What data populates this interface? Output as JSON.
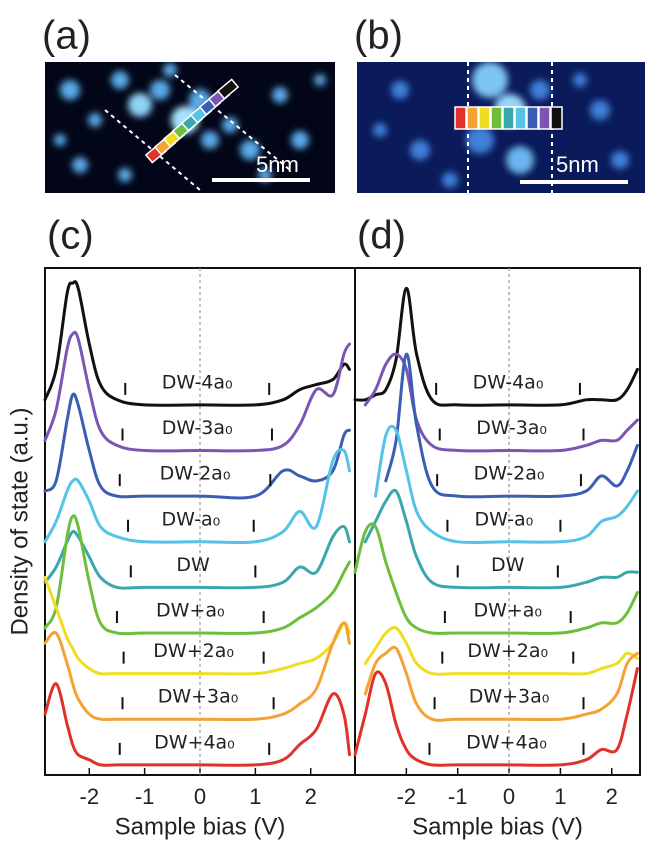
{
  "images": [
    {
      "label": "(a)",
      "scale": "5nm"
    },
    {
      "label": "(b)",
      "scale": "5nm"
    }
  ],
  "chart_data": [
    {
      "type": "line",
      "panel_label": "(c)",
      "xlabel": "Sample bias (V)",
      "ylabel": "Density of state (a.u.)",
      "xlim": [
        -2.8,
        2.8
      ],
      "ylim": [
        0,
        10
      ],
      "xticks": [
        -2,
        -1,
        0,
        1,
        2
      ],
      "zero_line": true,
      "x": [
        -2.8,
        -2.6,
        -2.4,
        -2.3,
        -2.2,
        -2.0,
        -1.8,
        -1.5,
        -1.0,
        0,
        1.0,
        1.5,
        1.8,
        2.1,
        2.4,
        2.6,
        2.7
      ],
      "series": [
        {
          "name": "DW-4a₀",
          "color": "#111111",
          "edges": [
            -1.35,
            1.25
          ],
          "values": [
            7.4,
            8.0,
            9.5,
            9.7,
            9.6,
            8.5,
            7.7,
            7.4,
            7.3,
            7.3,
            7.3,
            7.4,
            7.6,
            7.7,
            7.8,
            8.1,
            8.0
          ]
        },
        {
          "name": "DW-3a₀",
          "color": "#7b55b3",
          "edges": [
            -1.4,
            1.3
          ],
          "values": [
            6.6,
            7.2,
            8.4,
            8.7,
            8.6,
            7.6,
            6.8,
            6.5,
            6.4,
            6.4,
            6.4,
            6.5,
            6.9,
            7.6,
            7.5,
            8.3,
            8.5
          ]
        },
        {
          "name": "DW-2a₀",
          "color": "#3b5db3",
          "edges": [
            -1.45,
            1.27
          ],
          "values": [
            5.6,
            5.8,
            7.0,
            7.5,
            7.3,
            6.4,
            5.7,
            5.5,
            5.5,
            5.5,
            5.5,
            6.0,
            5.9,
            5.8,
            6.0,
            6.7,
            6.8
          ]
        },
        {
          "name": "DW-a₀",
          "color": "#55c2e8",
          "edges": [
            -1.3,
            0.97
          ],
          "values": [
            4.6,
            5.0,
            5.6,
            5.8,
            5.8,
            5.4,
            4.9,
            4.7,
            4.6,
            4.6,
            4.6,
            4.8,
            5.2,
            4.9,
            6.2,
            6.4,
            6.0
          ]
        },
        {
          "name": "DW",
          "color": "#3aa7ab",
          "edges": [
            -1.25,
            1.0
          ],
          "values": [
            3.8,
            4.1,
            4.6,
            4.8,
            4.7,
            4.3,
            3.9,
            3.7,
            3.7,
            3.7,
            3.7,
            3.8,
            4.1,
            4.0,
            4.7,
            4.9,
            4.6
          ]
        },
        {
          "name": "DW+a₀",
          "color": "#6dbf3b",
          "edges": [
            -1.5,
            1.15
          ],
          "values": [
            2.9,
            3.3,
            4.7,
            5.1,
            4.9,
            3.8,
            3.0,
            2.8,
            2.8,
            2.8,
            2.8,
            2.9,
            3.1,
            3.3,
            3.6,
            4.0,
            4.2
          ]
        },
        {
          "name": "DW+2a₀",
          "color": "#eedd22",
          "edges": [
            -1.38,
            1.15
          ],
          "values": [
            3.9,
            3.3,
            2.7,
            2.5,
            2.3,
            2.1,
            2.0,
            2.0,
            2.0,
            2.0,
            2.0,
            2.1,
            2.2,
            2.3,
            2.6,
            3.0,
            2.8
          ]
        },
        {
          "name": "DW+3a₀",
          "color": "#f4a233",
          "edges": [
            -1.4,
            1.33
          ],
          "values": [
            2.6,
            2.8,
            2.2,
            1.8,
            1.5,
            1.2,
            1.1,
            1.1,
            1.1,
            1.1,
            1.1,
            1.2,
            1.4,
            1.7,
            2.6,
            3.0,
            2.6
          ]
        },
        {
          "name": "DW+4a₀",
          "color": "#e0322b",
          "edges": [
            -1.45,
            1.25
          ],
          "values": [
            1.2,
            1.8,
            1.0,
            0.6,
            0.4,
            0.3,
            0.2,
            0.2,
            0.2,
            0.2,
            0.2,
            0.3,
            0.6,
            0.9,
            1.6,
            1.2,
            0.4
          ]
        }
      ]
    },
    {
      "type": "line",
      "panel_label": "(d)",
      "xlabel": "Sample bias (V)",
      "xlim": [
        -3.0,
        2.55
      ],
      "ylim": [
        0,
        10
      ],
      "xticks": [
        -2,
        -1,
        0,
        1,
        2
      ],
      "zero_line": true,
      "x": [
        -3.0,
        -2.8,
        -2.6,
        -2.4,
        -2.2,
        -2.0,
        -1.8,
        -1.5,
        -1.0,
        0,
        1.0,
        1.5,
        1.8,
        2.1,
        2.3,
        2.5
      ],
      "series": [
        {
          "name": "DW-4a₀",
          "color": "#111111",
          "edges": [
            -1.42,
            1.38
          ],
          "values": [
            7.4,
            7.4,
            7.5,
            7.6,
            8.2,
            9.6,
            8.3,
            7.4,
            7.3,
            7.3,
            7.3,
            7.4,
            7.4,
            7.4,
            7.6,
            8.0
          ]
        },
        {
          "name": "DW-3a₀",
          "color": "#7b55b3",
          "edges": [
            -1.35,
            1.45
          ],
          "values": [
            null,
            7.3,
            7.6,
            8.1,
            8.3,
            8.0,
            7.0,
            6.5,
            6.4,
            6.4,
            6.4,
            6.5,
            6.6,
            6.6,
            6.8,
            7.0
          ]
        },
        {
          "name": "DW-2a₀",
          "color": "#3b5db3",
          "edges": [
            -1.4,
            1.4
          ],
          "values": [
            null,
            null,
            null,
            5.8,
            6.6,
            8.3,
            6.9,
            5.7,
            5.5,
            5.5,
            5.5,
            5.6,
            5.9,
            5.7,
            6.0,
            6.5
          ]
        },
        {
          "name": "DW-a₀",
          "color": "#55c2e8",
          "edges": [
            -1.2,
            1.0
          ],
          "values": [
            null,
            null,
            5.5,
            6.7,
            6.8,
            6.0,
            5.2,
            4.8,
            4.6,
            4.6,
            4.6,
            4.7,
            5.0,
            5.1,
            5.3,
            5.6
          ]
        },
        {
          "name": "DW",
          "color": "#3aa7ab",
          "edges": [
            -1.0,
            0.95
          ],
          "values": [
            null,
            4.6,
            5.0,
            5.4,
            5.6,
            5.0,
            4.3,
            3.8,
            3.7,
            3.7,
            3.7,
            3.8,
            3.9,
            3.9,
            4.0,
            4.0
          ]
        },
        {
          "name": "DW+a₀",
          "color": "#6dbf3b",
          "edges": [
            -1.25,
            1.2
          ],
          "values": [
            4.0,
            4.8,
            4.9,
            4.2,
            3.6,
            3.1,
            2.9,
            2.8,
            2.8,
            2.8,
            2.8,
            2.9,
            3.0,
            3.0,
            3.2,
            3.6
          ]
        },
        {
          "name": "DW+2a₀",
          "color": "#eedd22",
          "edges": [
            -1.3,
            1.25
          ],
          "values": [
            null,
            2.2,
            2.5,
            2.8,
            2.9,
            2.6,
            2.2,
            2.0,
            2.0,
            2.0,
            2.0,
            2.0,
            2.1,
            2.2,
            2.4,
            2.3
          ]
        },
        {
          "name": "DW+3a₀",
          "color": "#f4a233",
          "edges": [
            -1.45,
            1.45
          ],
          "values": [
            null,
            1.6,
            2.2,
            2.4,
            2.5,
            2.0,
            1.4,
            1.1,
            1.1,
            1.1,
            1.1,
            1.2,
            1.3,
            1.6,
            2.2,
            2.4
          ]
        },
        {
          "name": "DW+4a₀",
          "color": "#e0322b",
          "edges": [
            -1.55,
            1.45
          ],
          "values": [
            0.4,
            1.2,
            2.0,
            1.8,
            1.0,
            0.5,
            0.3,
            0.2,
            0.2,
            0.2,
            0.2,
            0.3,
            0.5,
            0.5,
            1.2,
            2.1
          ]
        }
      ]
    }
  ]
}
